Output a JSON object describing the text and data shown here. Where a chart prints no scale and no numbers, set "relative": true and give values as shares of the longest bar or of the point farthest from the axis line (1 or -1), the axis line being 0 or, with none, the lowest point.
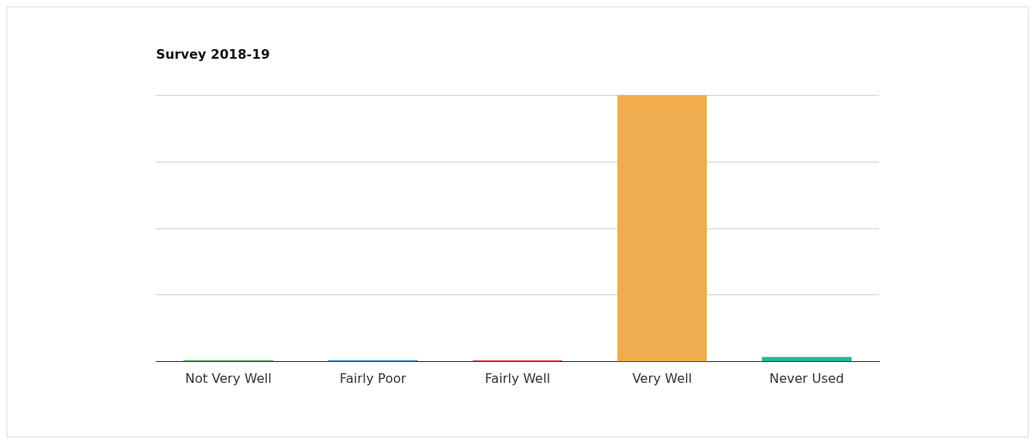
{
  "chart_data": {
    "type": "bar",
    "title": "Survey 2018-19",
    "categories": [
      "Not Very Well",
      "Fairly Poor",
      "Fairly Well",
      "Very Well",
      "Never Used"
    ],
    "values": [
      0.006,
      0.006,
      0.006,
      1,
      0.018
    ],
    "colors": [
      "#4caf50",
      "#3d8fcf",
      "#e05a4f",
      "#f0ad4e",
      "#1abc9c"
    ],
    "relative": true,
    "grid": "y",
    "legend": false
  }
}
